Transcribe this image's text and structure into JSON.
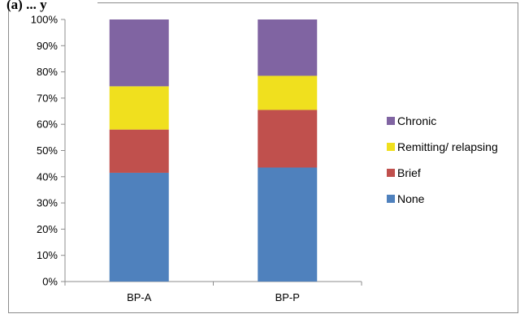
{
  "chart_data": {
    "type": "bar",
    "stacked": true,
    "percent_axis": true,
    "title": "(a) ... y",
    "xlabel": "",
    "ylabel": "",
    "categories": [
      "BP-A",
      "BP-P"
    ],
    "series": [
      {
        "name": "None",
        "color": "#4f81bd",
        "values": [
          41.5,
          43.5
        ]
      },
      {
        "name": "Brief",
        "color": "#c0504d",
        "values": [
          16.5,
          22.0
        ]
      },
      {
        "name": "Remitting/ relapsing",
        "color": "#f0e01e",
        "values": [
          16.5,
          13.0
        ]
      },
      {
        "name": "Chronic",
        "color": "#8064a2",
        "values": [
          25.5,
          21.5
        ]
      }
    ],
    "legend_order": [
      "Chronic",
      "Remitting/ relapsing",
      "Brief",
      "None"
    ],
    "ylim": [
      0,
      100
    ],
    "yticks": [
      "0%",
      "10%",
      "20%",
      "30%",
      "40%",
      "50%",
      "60%",
      "70%",
      "80%",
      "90%",
      "100%"
    ],
    "grid": false,
    "legend_position": "right"
  }
}
